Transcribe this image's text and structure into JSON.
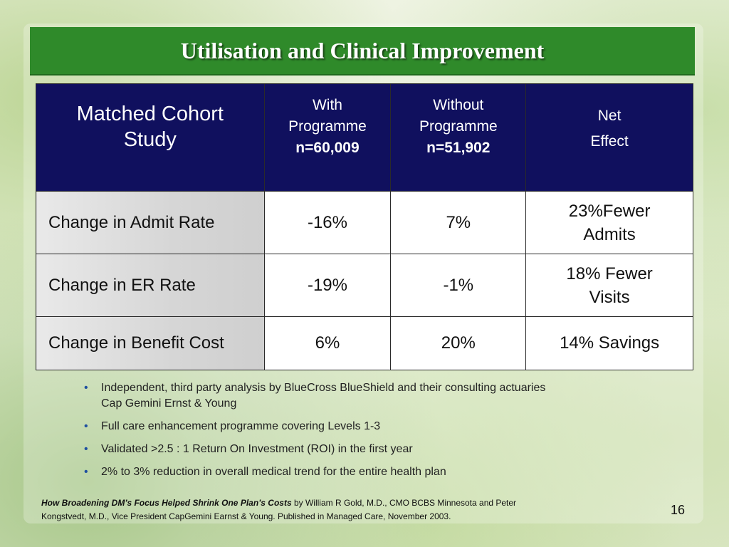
{
  "slide": {
    "title": "Utilisation and Clinical Improvement",
    "page_number": "16"
  },
  "table": {
    "header": {
      "main_line1": "Matched Cohort",
      "main_line2": "Study",
      "with_line1": "With",
      "with_line2": "Programme",
      "with_n": "n=60,009",
      "without_line1": "Without",
      "without_line2": "Programme",
      "without_n": "n=51,902",
      "net_line1": "Net",
      "net_line2": "Effect"
    },
    "rows": [
      {
        "label": "Change in Admit Rate",
        "with": "-16%",
        "without": "7%",
        "net_line1": "23%Fewer",
        "net_line2": "Admits"
      },
      {
        "label": "Change in ER Rate",
        "with": "-19%",
        "without": "-1%",
        "net_line1": "18% Fewer",
        "net_line2": "Visits"
      },
      {
        "label": "Change in Benefit Cost",
        "with": "6%",
        "without": "20%",
        "net": "14% Savings"
      }
    ]
  },
  "bullets": [
    {
      "line1": "Independent, third party analysis by BlueCross BlueShield and their consulting actuaries",
      "line2": "Cap Gemini Ernst & Young"
    },
    {
      "line1": "Full care enhancement programme covering Levels 1-3"
    },
    {
      "line1": "Validated  >2.5 : 1 Return On Investment (ROI) in the first year"
    },
    {
      "line1": "2% to 3% reduction in overall medical trend for the entire health plan"
    }
  ],
  "footer": {
    "citation_title": "How Broadening DM’s Focus Helped Shrink One Plan’s Costs",
    "citation_rest_line1": " by William R Gold, M.D., CMO BCBS Minnesota and Peter",
    "citation_rest_line2": "Kongstvedt, M.D., Vice President CapGemini Earnst & Young.  Published in Managed Care, November 2003."
  },
  "colors": {
    "title_bar": "#2f8a2a",
    "table_header": "#10105e",
    "bullet": "#1e4fa0"
  }
}
